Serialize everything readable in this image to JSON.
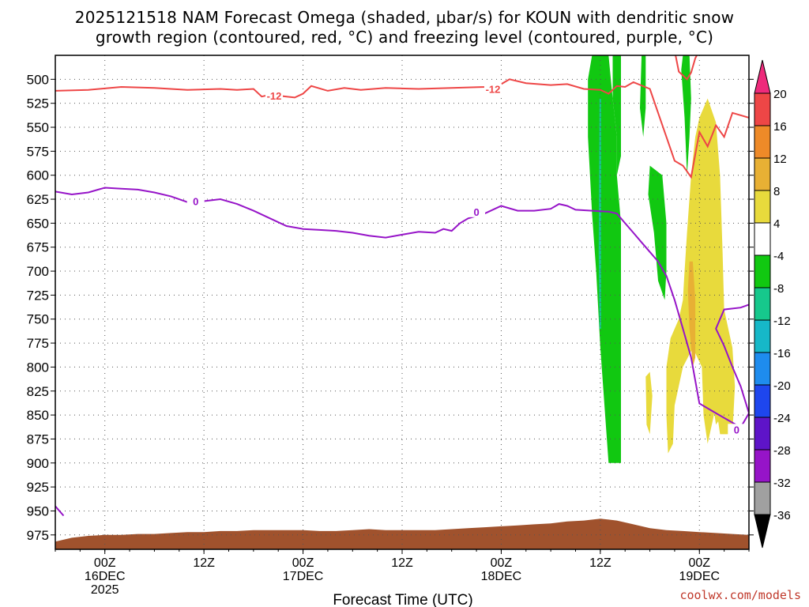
{
  "title": {
    "line1": "2025121518 NAM Forecast Omega (shaded, µbar/s) for KOUN with dendritic snow",
    "line2": "growth region (contoured, red, °C) and freezing level (contoured, purple, °C)"
  },
  "credit": "coolwx.com/models",
  "chart_data": {
    "type": "heatmap",
    "xlabel": "Forecast Time (UTC)",
    "ylabel": "",
    "y_axis": {
      "ticks": [
        500,
        525,
        550,
        575,
        600,
        625,
        650,
        675,
        700,
        725,
        750,
        775,
        800,
        825,
        850,
        875,
        900,
        925,
        950,
        975
      ],
      "ylim": [
        475,
        990
      ],
      "inverted": true
    },
    "x_axis": {
      "unit": "forecast hours from 2025-12-15 18Z",
      "xlim": [
        0,
        84
      ],
      "ticks": [
        {
          "x": 6,
          "lines": [
            "00Z",
            "16DEC",
            "2025"
          ]
        },
        {
          "x": 18,
          "lines": [
            "12Z"
          ]
        },
        {
          "x": 30,
          "lines": [
            "00Z",
            "17DEC"
          ]
        },
        {
          "x": 42,
          "lines": [
            "12Z"
          ]
        },
        {
          "x": 54,
          "lines": [
            "00Z",
            "18DEC"
          ]
        },
        {
          "x": 66,
          "lines": [
            "12Z"
          ]
        },
        {
          "x": 78,
          "lines": [
            "00Z",
            "19DEC"
          ]
        }
      ]
    },
    "grid": true,
    "colorbar": {
      "levels": [
        20,
        16,
        12,
        8,
        4,
        -4,
        -8,
        -12,
        -16,
        -20,
        -24,
        -28,
        -32,
        -36
      ],
      "colors": [
        "#ee2a7b",
        "#ee4646",
        "#ee8a28",
        "#e8b034",
        "#e8da3c",
        "#ffffff",
        "#11c811",
        "#16c88c",
        "#16b8c8",
        "#1e8cee",
        "#1e46ee",
        "#5e14c8",
        "#9614c8",
        "#a0a0a0",
        "#000000"
      ]
    },
    "red_contour": {
      "label": "-12",
      "color": "#ee4646",
      "points": [
        [
          0,
          512
        ],
        [
          4,
          511
        ],
        [
          8,
          508
        ],
        [
          12,
          509
        ],
        [
          16,
          511
        ],
        [
          20,
          510
        ],
        [
          22,
          511
        ],
        [
          24,
          510
        ],
        [
          25,
          518
        ],
        [
          26,
          516
        ],
        [
          27,
          517
        ],
        [
          28,
          518
        ],
        [
          29,
          519
        ],
        [
          30,
          515
        ],
        [
          31,
          507
        ],
        [
          33,
          512
        ],
        [
          35,
          509
        ],
        [
          37,
          511
        ],
        [
          40,
          509
        ],
        [
          44,
          510
        ],
        [
          48,
          509
        ],
        [
          52,
          508
        ],
        [
          54,
          505
        ],
        [
          55,
          500
        ],
        [
          57,
          504
        ],
        [
          60,
          506
        ],
        [
          62,
          505
        ],
        [
          64,
          510
        ],
        [
          66,
          511
        ],
        [
          67,
          515
        ],
        [
          68,
          507
        ],
        [
          69,
          508
        ],
        [
          70,
          503
        ],
        [
          72,
          510
        ],
        [
          73,
          535
        ],
        [
          74,
          560
        ],
        [
          75,
          585
        ],
        [
          76,
          590
        ],
        [
          77,
          602
        ],
        [
          78,
          555
        ],
        [
          79,
          570
        ],
        [
          80,
          548
        ],
        [
          81,
          560
        ],
        [
          82,
          535
        ],
        [
          84,
          540
        ]
      ]
    },
    "red_contour_upper": {
      "color": "#ee4646",
      "points": [
        [
          75,
          470
        ],
        [
          75.5,
          492
        ],
        [
          76.5,
          500
        ],
        [
          77,
          493
        ],
        [
          77.5,
          478
        ],
        [
          78,
          470
        ]
      ]
    },
    "purple_contour": {
      "label": "0",
      "color": "#9614c8",
      "points": [
        [
          0,
          617
        ],
        [
          2,
          620
        ],
        [
          4,
          618
        ],
        [
          6,
          613
        ],
        [
          8,
          614
        ],
        [
          10,
          615
        ],
        [
          12,
          618
        ],
        [
          14,
          622
        ],
        [
          16,
          628
        ],
        [
          18,
          627
        ],
        [
          20,
          625
        ],
        [
          22,
          630
        ],
        [
          24,
          637
        ],
        [
          26,
          645
        ],
        [
          28,
          653
        ],
        [
          30,
          656
        ],
        [
          32,
          657
        ],
        [
          34,
          658
        ],
        [
          36,
          660
        ],
        [
          38,
          663
        ],
        [
          40,
          665
        ],
        [
          42,
          662
        ],
        [
          44,
          659
        ],
        [
          46,
          660
        ],
        [
          47,
          656
        ],
        [
          48,
          658
        ],
        [
          49,
          650
        ],
        [
          50,
          645
        ],
        [
          52,
          640
        ],
        [
          54,
          632
        ],
        [
          56,
          637
        ],
        [
          58,
          637
        ],
        [
          60,
          635
        ],
        [
          61,
          630
        ],
        [
          62,
          632
        ],
        [
          63,
          636
        ],
        [
          65,
          637
        ],
        [
          67,
          638
        ],
        [
          68,
          640
        ],
        [
          69,
          650
        ],
        [
          70,
          660
        ],
        [
          71,
          670
        ],
        [
          72,
          680
        ],
        [
          73,
          690
        ],
        [
          74,
          705
        ],
        [
          75,
          730
        ],
        [
          76,
          760
        ],
        [
          77,
          790
        ],
        [
          78,
          838
        ],
        [
          80,
          848
        ],
        [
          82,
          858
        ],
        [
          83,
          863
        ],
        [
          84,
          848
        ],
        [
          83,
          820
        ],
        [
          82,
          800
        ],
        [
          81,
          778
        ],
        [
          80,
          760
        ],
        [
          81,
          740
        ],
        [
          83,
          738
        ],
        [
          84,
          735
        ]
      ]
    },
    "purple_contour_small": {
      "color": "#9614c8",
      "points": [
        [
          0,
          945
        ],
        [
          0.5,
          950
        ],
        [
          1,
          955
        ]
      ]
    },
    "shaded_regions": [
      {
        "value_range": [
          -8,
          -4
        ],
        "color": "#11c811",
        "points": [
          [
            65,
            475
          ],
          [
            67,
            475
          ],
          [
            67.5,
            520
          ],
          [
            68,
            560
          ],
          [
            68,
            600
          ],
          [
            68.5,
            650
          ],
          [
            68.5,
            700
          ],
          [
            68.5,
            760
          ],
          [
            68.5,
            820
          ],
          [
            68.5,
            900
          ],
          [
            67,
            900
          ],
          [
            66.5,
            840
          ],
          [
            66,
            780
          ],
          [
            65.5,
            700
          ],
          [
            65,
            640
          ],
          [
            64.5,
            560
          ],
          [
            64.5,
            500
          ]
        ]
      },
      {
        "value_range": [
          -8,
          -4
        ],
        "color": "#11c811",
        "points": [
          [
            67.5,
            475
          ],
          [
            68.5,
            475
          ],
          [
            68.5,
            540
          ],
          [
            68.5,
            580
          ],
          [
            68,
            600
          ],
          [
            68,
            560
          ],
          [
            67.5,
            520
          ]
        ]
      },
      {
        "value_range": [
          -8,
          -4
        ],
        "color": "#11c811",
        "points": [
          [
            71,
            475
          ],
          [
            71.5,
            475
          ],
          [
            71.5,
            530
          ],
          [
            71.2,
            560
          ],
          [
            70.8,
            530
          ]
        ]
      },
      {
        "value_range": [
          -8,
          -4
        ],
        "color": "#11c811",
        "points": [
          [
            72,
            590
          ],
          [
            73.5,
            600
          ],
          [
            74,
            650
          ],
          [
            74,
            700
          ],
          [
            73.8,
            730
          ],
          [
            73,
            710
          ],
          [
            72.5,
            660
          ],
          [
            71.8,
            620
          ]
        ]
      },
      {
        "value_range": [
          -8,
          -4
        ],
        "color": "#11c811",
        "points": [
          [
            76,
            475
          ],
          [
            76.8,
            475
          ],
          [
            77,
            520
          ],
          [
            76.8,
            560
          ],
          [
            76.5,
            600
          ],
          [
            76.2,
            540
          ],
          [
            75.8,
            490
          ]
        ]
      },
      {
        "value_range": [
          -12,
          -8
        ],
        "color": "#16c88c",
        "points": [
          [
            65.9,
            520
          ],
          [
            66.1,
            520
          ],
          [
            66.1,
            680
          ],
          [
            66.1,
            760
          ],
          [
            65.9,
            760
          ],
          [
            65.8,
            680
          ]
        ]
      },
      {
        "value_range": [
          4,
          8
        ],
        "color": "#e8da3c",
        "points": [
          [
            78,
            540
          ],
          [
            79,
            520
          ],
          [
            80,
            545
          ],
          [
            80.5,
            600
          ],
          [
            80.8,
            680
          ],
          [
            81,
            740
          ],
          [
            82,
            780
          ],
          [
            82.3,
            820
          ],
          [
            82,
            870
          ],
          [
            80.5,
            870
          ],
          [
            80,
            840
          ],
          [
            79.5,
            860
          ],
          [
            79,
            880
          ],
          [
            78.5,
            850
          ],
          [
            78.3,
            800
          ],
          [
            77.2,
            780
          ],
          [
            76,
            800
          ],
          [
            75,
            840
          ],
          [
            74.8,
            880
          ],
          [
            74.2,
            890
          ],
          [
            74,
            850
          ],
          [
            74,
            800
          ],
          [
            74.5,
            770
          ],
          [
            75.5,
            750
          ],
          [
            76,
            730
          ],
          [
            76.2,
            700
          ],
          [
            76.5,
            660
          ],
          [
            77,
            600
          ],
          [
            77.5,
            560
          ]
        ]
      },
      {
        "value_range": [
          4,
          8
        ],
        "color": "#e8da3c",
        "points": [
          [
            78.5,
            680
          ],
          [
            79.2,
            670
          ],
          [
            79.5,
            720
          ],
          [
            79.3,
            780
          ],
          [
            78.8,
            750
          ]
        ]
      },
      {
        "value_range": [
          4,
          8
        ],
        "color": "#e8da3c",
        "points": [
          [
            79.5,
            740
          ],
          [
            80.5,
            740
          ],
          [
            81,
            790
          ],
          [
            80.8,
            850
          ],
          [
            80,
            860
          ],
          [
            79.5,
            830
          ]
        ]
      },
      {
        "value_range": [
          4,
          8
        ],
        "color": "#e8da3c",
        "points": [
          [
            71.5,
            810
          ],
          [
            72,
            805
          ],
          [
            72.3,
            830
          ],
          [
            72,
            870
          ],
          [
            71.6,
            860
          ]
        ]
      },
      {
        "value_range": [
          8,
          12
        ],
        "color": "#e8b034",
        "points": [
          [
            76.8,
            690
          ],
          [
            77.2,
            690
          ],
          [
            77.5,
            730
          ],
          [
            77.5,
            790
          ],
          [
            77.2,
            800
          ],
          [
            76.8,
            760
          ],
          [
            76.6,
            720
          ]
        ]
      }
    ],
    "terrain": {
      "color": "#a0522d",
      "points": [
        [
          0,
          990
        ],
        [
          0,
          982
        ],
        [
          2,
          978
        ],
        [
          4,
          976
        ],
        [
          6,
          975
        ],
        [
          8,
          975
        ],
        [
          10,
          974
        ],
        [
          12,
          974
        ],
        [
          14,
          973
        ],
        [
          16,
          972
        ],
        [
          18,
          972
        ],
        [
          20,
          971
        ],
        [
          22,
          971
        ],
        [
          24,
          970
        ],
        [
          26,
          970
        ],
        [
          28,
          970
        ],
        [
          30,
          970
        ],
        [
          32,
          971
        ],
        [
          34,
          971
        ],
        [
          36,
          970
        ],
        [
          38,
          969
        ],
        [
          40,
          970
        ],
        [
          42,
          970
        ],
        [
          44,
          970
        ],
        [
          46,
          970
        ],
        [
          48,
          969
        ],
        [
          50,
          968
        ],
        [
          52,
          967
        ],
        [
          54,
          966
        ],
        [
          56,
          965
        ],
        [
          58,
          964
        ],
        [
          60,
          963
        ],
        [
          62,
          961
        ],
        [
          64,
          960
        ],
        [
          66,
          958
        ],
        [
          67,
          959
        ],
        [
          68,
          960
        ],
        [
          70,
          964
        ],
        [
          72,
          968
        ],
        [
          74,
          970
        ],
        [
          76,
          971
        ],
        [
          78,
          972
        ],
        [
          80,
          973
        ],
        [
          82,
          974
        ],
        [
          84,
          975
        ],
        [
          84,
          990
        ]
      ]
    }
  }
}
